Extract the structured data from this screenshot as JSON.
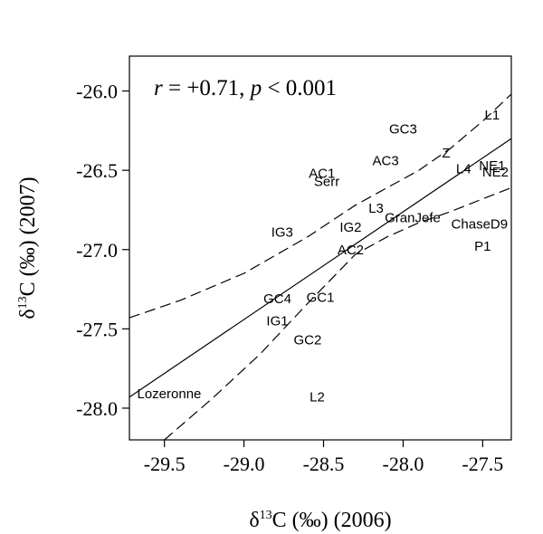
{
  "chart_data": {
    "type": "scatter",
    "annotation": {
      "r_italic": "r",
      "r_text": " = +0.71, ",
      "p_italic": "p",
      "p_text": " < 0.001"
    },
    "xlabel": {
      "prefix": "δ",
      "sup": "13",
      "suffix": "C (‰) (2006)"
    },
    "ylabel": {
      "prefix": "δ",
      "sup": "13",
      "suffix": "C (‰) (2007)"
    },
    "xlim": [
      -29.72,
      -27.32
    ],
    "ylim": [
      -28.2,
      -25.78
    ],
    "xticks": [
      -29.5,
      -29.0,
      -28.5,
      -28.0,
      -27.5
    ],
    "xtick_labels": [
      "-29.5",
      "-29.0",
      "-28.5",
      "-28.0",
      "-27.5"
    ],
    "yticks": [
      -26.0,
      -26.5,
      -27.0,
      -27.5,
      -28.0
    ],
    "ytick_labels": [
      "-26.0",
      "-26.5",
      "-27.0",
      "-27.5",
      "-28.0"
    ],
    "points": [
      {
        "label": "L1",
        "x": -27.44,
        "y": -26.15
      },
      {
        "label": "GC3",
        "x": -28.0,
        "y": -26.24
      },
      {
        "label": "Z",
        "x": -27.73,
        "y": -26.39
      },
      {
        "label": "AC3",
        "x": -28.11,
        "y": -26.44
      },
      {
        "label": "NE1",
        "x": -27.44,
        "y": -26.47
      },
      {
        "label": "L4",
        "x": -27.62,
        "y": -26.49
      },
      {
        "label": "NE2",
        "x": -27.42,
        "y": -26.51
      },
      {
        "label": "AC1",
        "x": -28.51,
        "y": -26.52
      },
      {
        "label": "Serr",
        "x": -28.48,
        "y": -26.57
      },
      {
        "label": "L3",
        "x": -28.17,
        "y": -26.74
      },
      {
        "label": "GranJefe",
        "x": -27.94,
        "y": -26.8
      },
      {
        "label": "ChaseD9",
        "x": -27.52,
        "y": -26.84
      },
      {
        "label": "IG2",
        "x": -28.33,
        "y": -26.86
      },
      {
        "label": "IG3",
        "x": -28.76,
        "y": -26.89
      },
      {
        "label": "P1",
        "x": -27.5,
        "y": -26.98
      },
      {
        "label": "AC2",
        "x": -28.33,
        "y": -27.0
      },
      {
        "label": "GC1",
        "x": -28.52,
        "y": -27.3
      },
      {
        "label": "GC4",
        "x": -28.79,
        "y": -27.31
      },
      {
        "label": "IG1",
        "x": -28.79,
        "y": -27.45
      },
      {
        "label": "GC2",
        "x": -28.6,
        "y": -27.57
      },
      {
        "label": "Lozeronne",
        "x": -29.47,
        "y": -27.91
      },
      {
        "label": "L2",
        "x": -28.54,
        "y": -27.93
      }
    ],
    "regression": {
      "x": [
        -29.72,
        -27.32
      ],
      "y": [
        -27.93,
        -26.3
      ]
    },
    "ci_upper": {
      "x": [
        -29.72,
        -29.4,
        -29.0,
        -28.6,
        -28.3,
        -28.1,
        -27.9,
        -27.7,
        -27.5,
        -27.32
      ],
      "y": [
        -27.43,
        -27.32,
        -27.15,
        -26.92,
        -26.72,
        -26.61,
        -26.5,
        -26.36,
        -26.19,
        -26.02
      ]
    },
    "ci_lower": {
      "x": [
        -29.5,
        -29.2,
        -28.9,
        -28.6,
        -28.3,
        -28.1,
        -27.9,
        -27.7,
        -27.5,
        -27.32
      ],
      "y": [
        -28.2,
        -27.94,
        -27.66,
        -27.34,
        -27.03,
        -26.92,
        -26.83,
        -26.76,
        -26.68,
        -26.61
      ]
    },
    "grid": false,
    "legend": "none"
  }
}
